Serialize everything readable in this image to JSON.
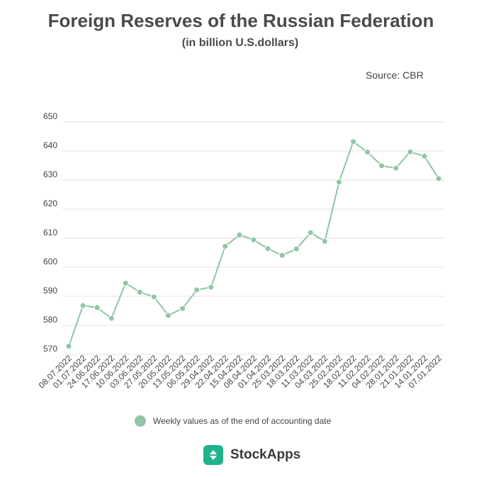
{
  "header": {
    "title": "Foreign Reserves of the Russian Federation",
    "subtitle": "(in billion U.S.dollars)",
    "source": "Source: CBR"
  },
  "legend": {
    "label": "Weekly values as of the end of accounting date"
  },
  "brand": {
    "name": "StockApps"
  },
  "colors": {
    "series": "#8fc6a4",
    "grid": "#e3e3e3",
    "brand": "#1fb38a"
  },
  "chart_data": {
    "type": "line",
    "title": "Foreign Reserves of the Russian Federation",
    "subtitle": "(in billion U.S.dollars)",
    "xlabel": "",
    "ylabel": "",
    "ylim": [
      570,
      650
    ],
    "yticks": [
      570,
      580,
      590,
      600,
      610,
      620,
      630,
      640,
      650
    ],
    "grid": true,
    "legend_position": "bottom",
    "categories": [
      "08.07.2022",
      "01.07.2022",
      "24.06.2022",
      "17.06.2022",
      "10.06.2022",
      "03.06.2022",
      "27.05.2022",
      "20.05.2022",
      "13.05.2022",
      "06.05.2022",
      "29.04.2022",
      "22.04.2022",
      "15.04.2022",
      "08.04.2022",
      "01.04.2022",
      "25.03.2022",
      "18.03.2022",
      "11.03.2022",
      "04.03.2022",
      "25.02.2022",
      "18.02.2022",
      "11.02.2022",
      "04.02.2022",
      "28.01.2022",
      "21.01.2022",
      "14.01.2022",
      "07.01.2022"
    ],
    "series": [
      {
        "name": "Weekly values as of the end of accounting date",
        "values": [
          572.8,
          586.8,
          586.1,
          582.4,
          594.5,
          591.4,
          589.8,
          583.4,
          585.8,
          592.2,
          593.1,
          607.2,
          611.1,
          609.4,
          606.4,
          604.1,
          606.3,
          611.9,
          608.9,
          629.3,
          643.2,
          639.6,
          634.9,
          634.1,
          639.7,
          638.2,
          630.5
        ]
      }
    ]
  }
}
